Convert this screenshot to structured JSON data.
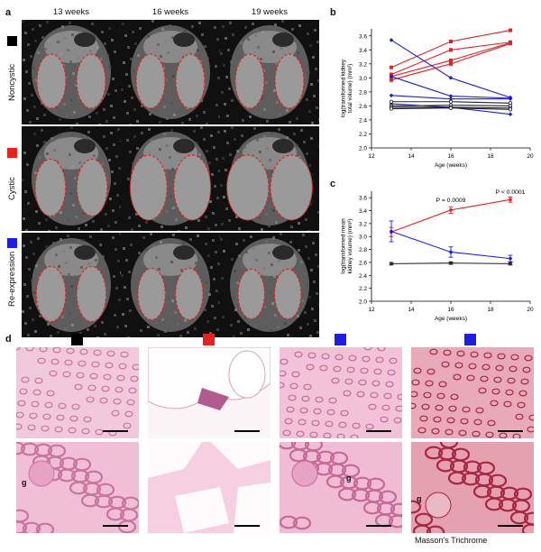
{
  "panels": {
    "a": "a",
    "b": "b",
    "c": "c",
    "d": "d"
  },
  "mri": {
    "weeks": [
      "13 weeks",
      "16 weeks",
      "19 weeks"
    ],
    "rows": [
      {
        "label": "Noncystic",
        "color": "#000000"
      },
      {
        "label": "Cystic",
        "color": "#e8201e"
      },
      {
        "label": "Re-expression",
        "color": "#1d1de6"
      }
    ]
  },
  "histology": {
    "column_colors": [
      "#000000",
      "#e8201e",
      "#1d1de6",
      "#1d1de6"
    ],
    "glomerulus_label": "g",
    "stain_caption": "Masson's Trichrome"
  },
  "chart_data": [
    {
      "type": "line",
      "panel": "b",
      "title": "",
      "xlabel": "Age (weeks)",
      "ylabel": "log(transformed kidney total volume) (mm³)",
      "xlim": [
        12,
        20
      ],
      "ylim": [
        2.0,
        3.7
      ],
      "xticks": [
        12,
        14,
        16,
        18,
        20
      ],
      "yticks": [
        2.0,
        2.2,
        2.4,
        2.6,
        2.8,
        3.0,
        3.2,
        3.4,
        3.6
      ],
      "x": [
        13,
        16,
        19
      ],
      "series": [
        {
          "color": "#e8201e",
          "marker": "square",
          "values": [
            3.15,
            3.52,
            3.68
          ]
        },
        {
          "color": "#e8201e",
          "marker": "square",
          "values": [
            3.05,
            3.4,
            3.51
          ]
        },
        {
          "color": "#e8201e",
          "marker": "square",
          "values": [
            3.02,
            3.25,
            3.5
          ]
        },
        {
          "color": "#e8201e",
          "marker": "square",
          "values": [
            2.97,
            3.2,
            3.49
          ]
        },
        {
          "color": "#1d1de6",
          "marker": "diamond",
          "values": [
            3.54,
            3.0,
            2.72
          ]
        },
        {
          "color": "#1d1de6",
          "marker": "diamond",
          "values": [
            3.02,
            2.74,
            2.71
          ]
        },
        {
          "color": "#1d1de6",
          "marker": "diamond",
          "values": [
            2.75,
            2.7,
            2.7
          ]
        },
        {
          "color": "#1d1de6",
          "marker": "diamond",
          "values": [
            2.63,
            2.58,
            2.48
          ]
        },
        {
          "color": "#222222",
          "marker": "circle",
          "values": [
            2.66,
            2.66,
            2.64
          ]
        },
        {
          "color": "#222222",
          "marker": "circle",
          "values": [
            2.6,
            2.61,
            2.6
          ]
        },
        {
          "color": "#222222",
          "marker": "circle",
          "values": [
            2.58,
            2.58,
            2.57
          ]
        },
        {
          "color": "#222222",
          "marker": "circle",
          "values": [
            2.56,
            2.57,
            2.55
          ]
        }
      ]
    },
    {
      "type": "line",
      "panel": "c",
      "title": "",
      "xlabel": "Age (weeks)",
      "ylabel": "log(transformed mean kidney volume) (mm³)",
      "xlim": [
        12,
        20
      ],
      "ylim": [
        2.0,
        3.7
      ],
      "xticks": [
        12,
        14,
        16,
        18,
        20
      ],
      "yticks": [
        2.0,
        2.2,
        2.4,
        2.6,
        2.8,
        3.0,
        3.2,
        3.4,
        3.6
      ],
      "x": [
        13,
        16,
        19
      ],
      "series": [
        {
          "color": "#e8201e",
          "values": [
            3.07,
            3.41,
            3.57
          ],
          "errors": [
            0.07,
            0.05,
            0.04
          ]
        },
        {
          "color": "#1d1de6",
          "values": [
            3.08,
            2.76,
            2.66
          ],
          "errors": [
            0.16,
            0.08,
            0.05
          ]
        },
        {
          "color": "#222222",
          "values": [
            2.58,
            2.59,
            2.58
          ],
          "errors": [
            0.02,
            0.02,
            0.02
          ]
        }
      ],
      "annotations": [
        {
          "text": "P = 0.0009",
          "x": 16,
          "y": 3.53
        },
        {
          "text": "P < 0.0001",
          "x": 19,
          "y": 3.66
        }
      ]
    }
  ]
}
